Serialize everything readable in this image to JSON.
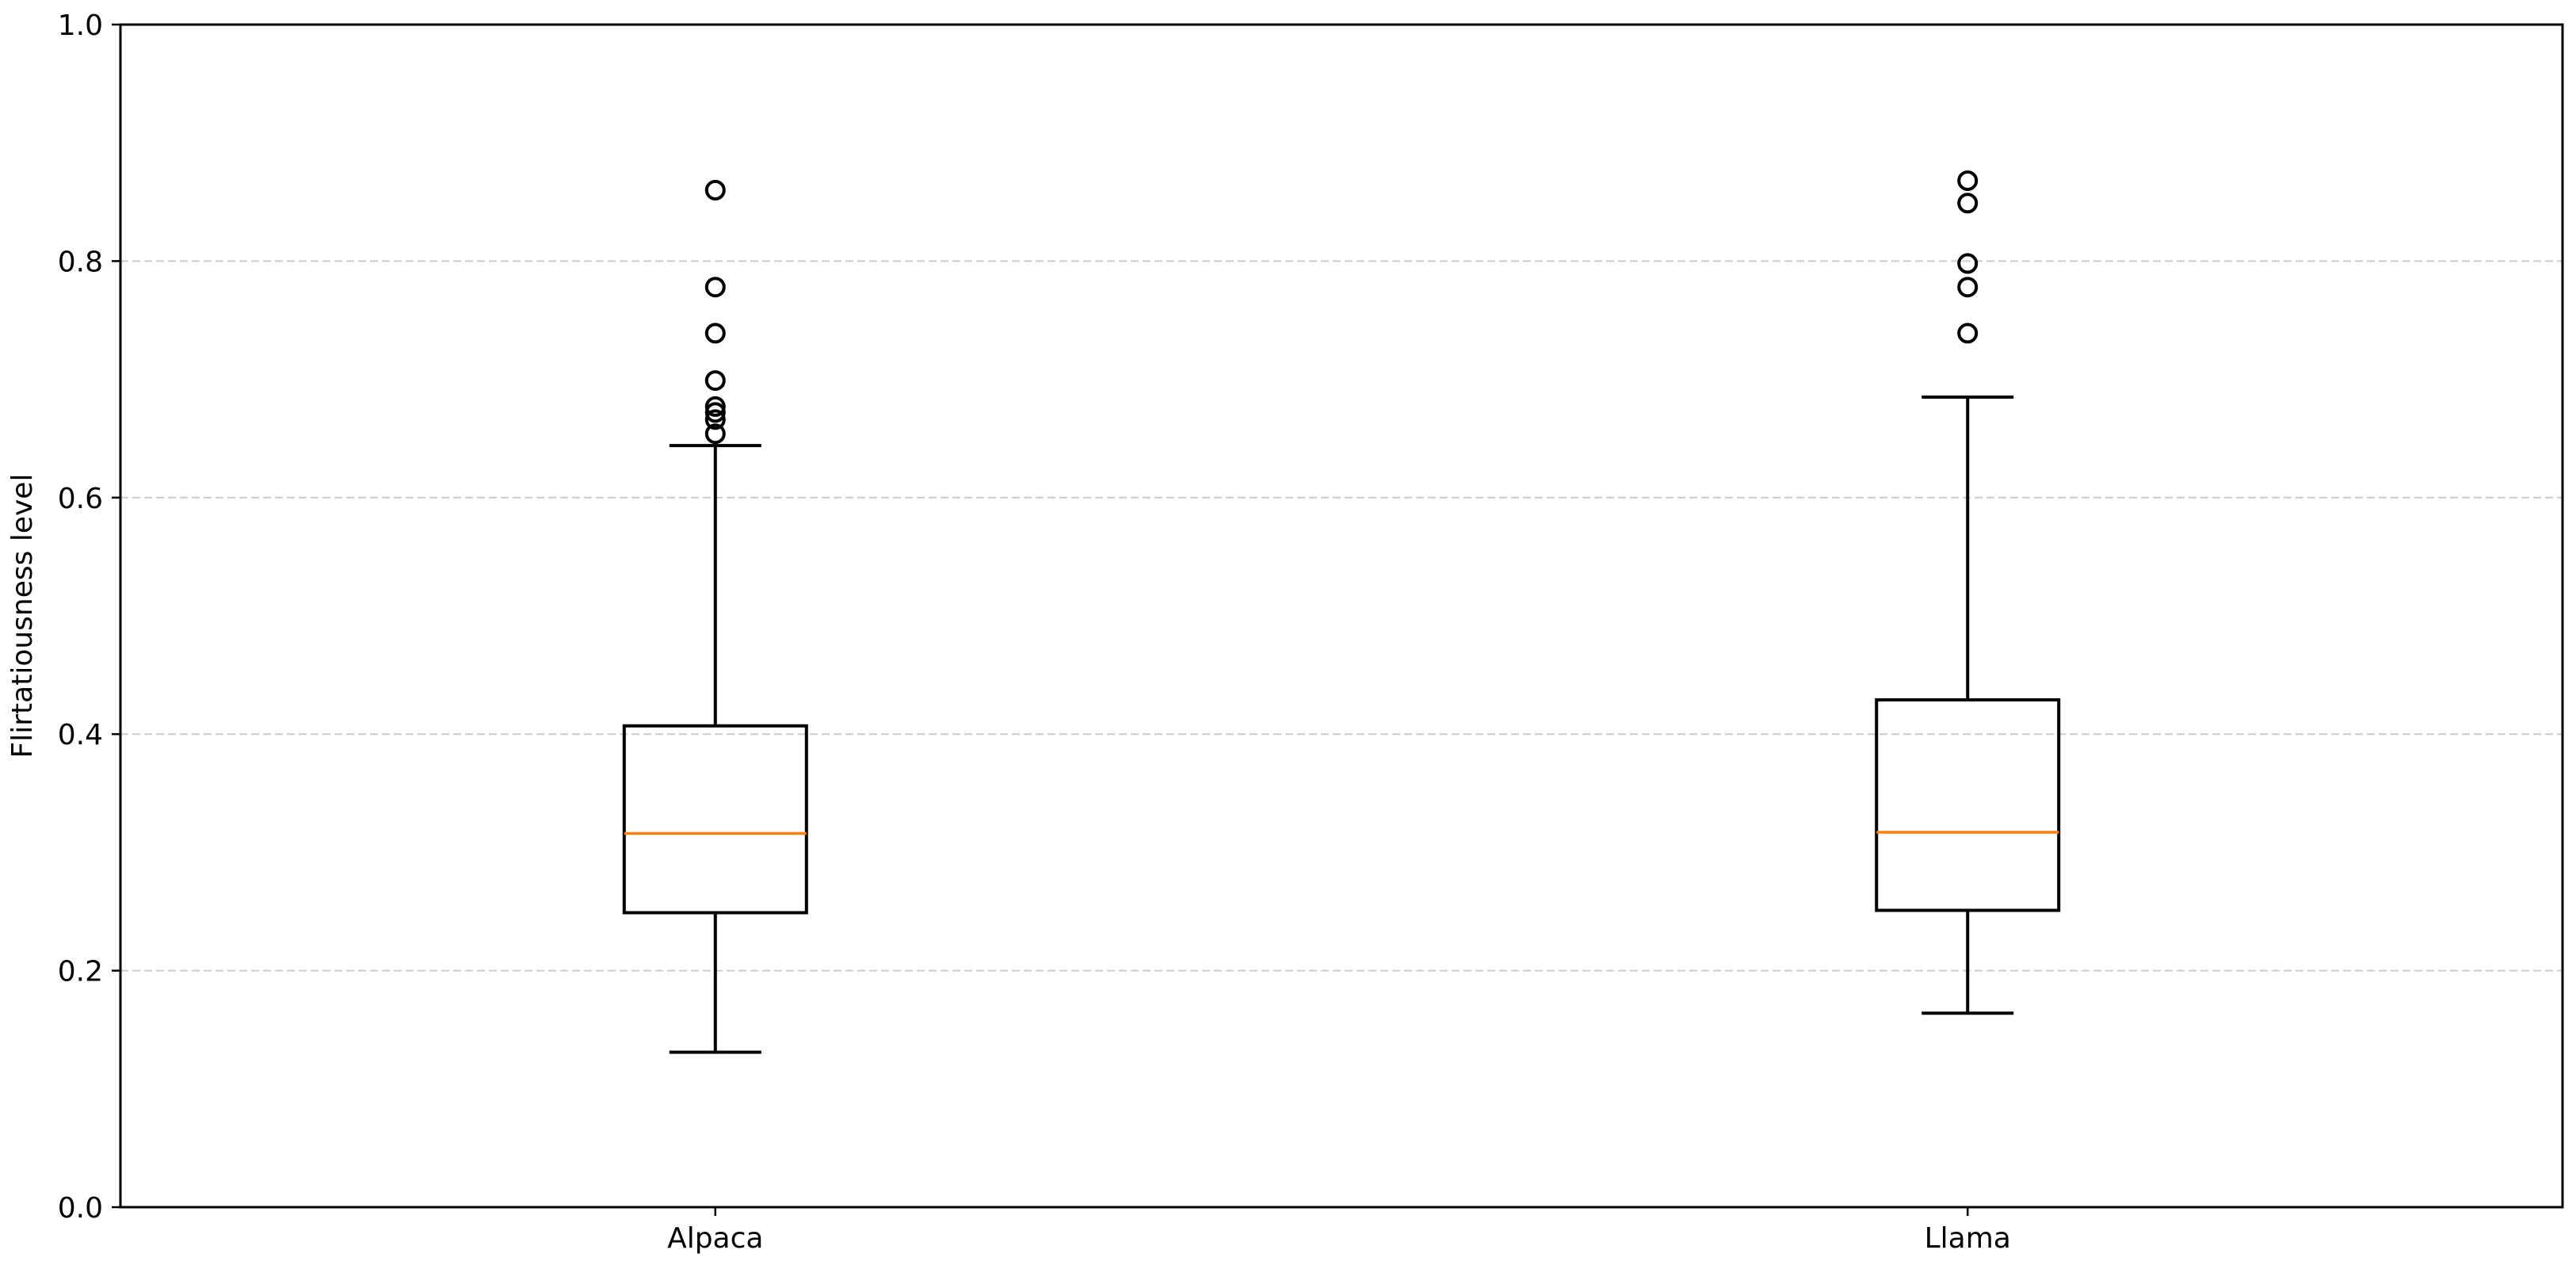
{
  "chart_data": {
    "type": "box",
    "categories": [
      "Alpaca",
      "Llama"
    ],
    "ylabel": "Flirtatiousness level",
    "xlabel": "",
    "ylim": [
      0.0,
      1.0
    ],
    "yticks": [
      0.0,
      0.2,
      0.4,
      0.6,
      0.8,
      1.0
    ],
    "ytick_labels": [
      "0.0",
      "0.2",
      "0.4",
      "0.6",
      "0.8",
      "1.0"
    ],
    "grid": {
      "y": true,
      "x": false,
      "style": "dashed"
    },
    "boxes": [
      {
        "name": "Alpaca",
        "whisker_low": 0.131,
        "q1": 0.249,
        "median": 0.316,
        "q3": 0.407,
        "whisker_high": 0.644,
        "outliers": [
          0.654,
          0.666,
          0.672,
          0.677,
          0.699,
          0.739,
          0.778,
          0.86
        ]
      },
      {
        "name": "Llama",
        "whisker_low": 0.164,
        "q1": 0.251,
        "median": 0.317,
        "q3": 0.429,
        "whisker_high": 0.685,
        "outliers": [
          0.739,
          0.778,
          0.798,
          0.849,
          0.868
        ]
      }
    ],
    "colors": {
      "box": "#000000",
      "median": "#ff7f0e",
      "grid": "#cccccc",
      "outlier": "#000000"
    }
  }
}
